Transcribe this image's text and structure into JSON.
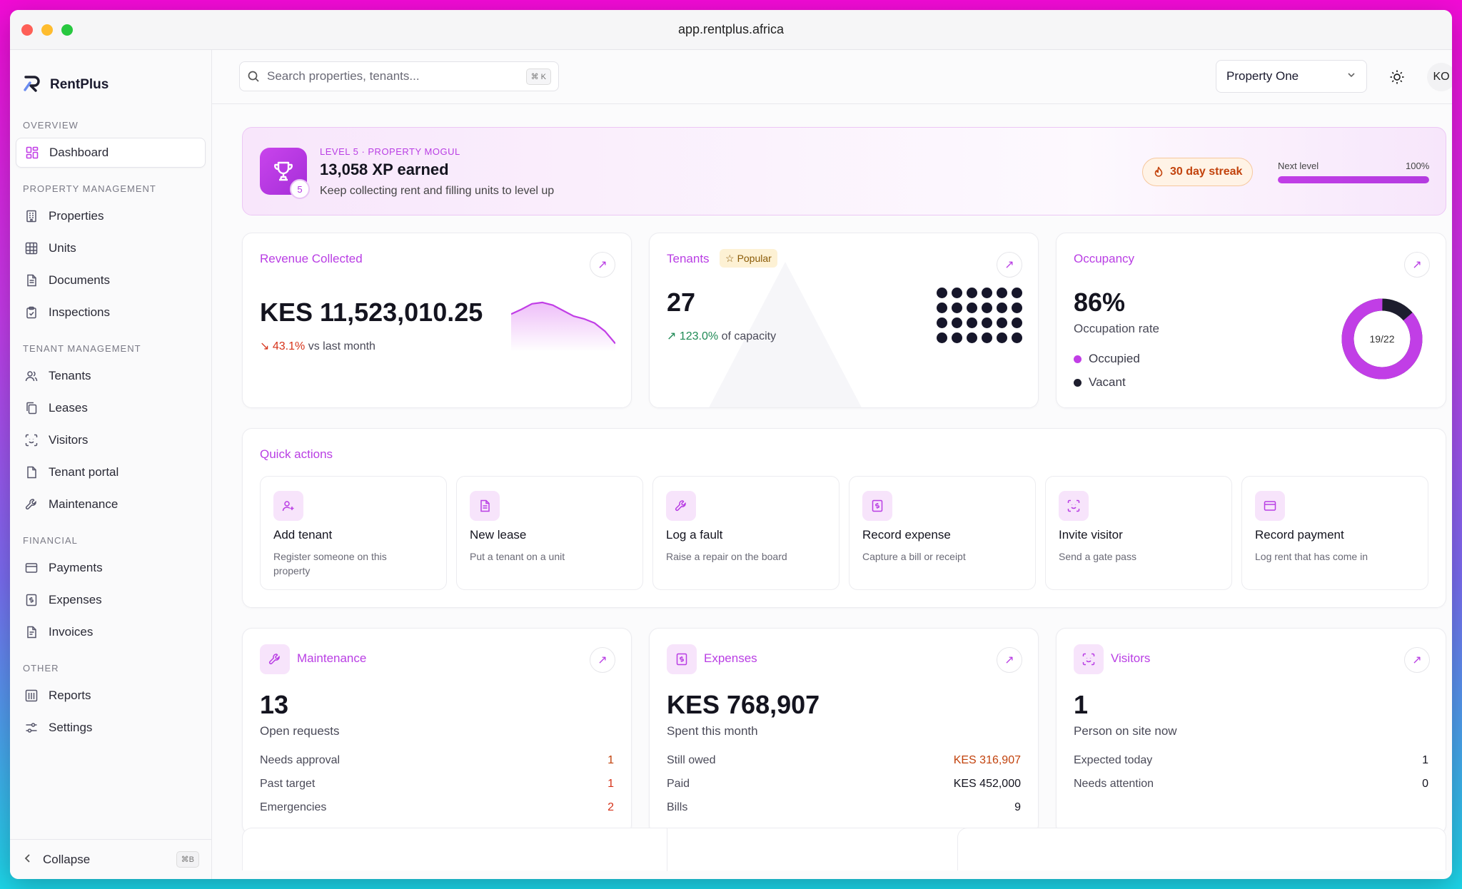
{
  "window": {
    "url": "app.rentplus.africa"
  },
  "brand": {
    "name": "RentPlus"
  },
  "sidebar": {
    "sections": [
      {
        "label": "OVERVIEW",
        "items": [
          {
            "label": "Dashboard",
            "icon": "grid-icon",
            "active": true
          }
        ]
      },
      {
        "label": "PROPERTY MANAGEMENT",
        "items": [
          {
            "label": "Properties",
            "icon": "building-icon"
          },
          {
            "label": "Units",
            "icon": "units-grid-icon"
          },
          {
            "label": "Documents",
            "icon": "document-icon"
          },
          {
            "label": "Inspections",
            "icon": "clipboard-check-icon"
          }
        ]
      },
      {
        "label": "TENANT MANAGEMENT",
        "items": [
          {
            "label": "Tenants",
            "icon": "users-icon"
          },
          {
            "label": "Leases",
            "icon": "copy-icon"
          },
          {
            "label": "Visitors",
            "icon": "scan-face-icon"
          },
          {
            "label": "Tenant portal",
            "icon": "file-icon"
          },
          {
            "label": "Maintenance",
            "icon": "wrench-icon"
          }
        ]
      },
      {
        "label": "FINANCIAL",
        "items": [
          {
            "label": "Payments",
            "icon": "wallet-icon"
          },
          {
            "label": "Expenses",
            "icon": "receipt-icon"
          },
          {
            "label": "Invoices",
            "icon": "invoice-icon"
          }
        ]
      },
      {
        "label": "OTHER",
        "items": [
          {
            "label": "Reports",
            "icon": "chart-icon"
          },
          {
            "label": "Settings",
            "icon": "sliders-icon"
          }
        ]
      }
    ],
    "collapse_label": "Collapse",
    "collapse_shortcut": "⌘B"
  },
  "topbar": {
    "search_placeholder": "Search properties, tenants...",
    "search_shortcut": "⌘ K",
    "property_select": "Property One",
    "avatar_initials": "KO"
  },
  "level": {
    "kicker": "LEVEL 5 · PROPERTY MOGUL",
    "title": "13,058 XP earned",
    "subtitle": "Keep collecting rent and filling units to level up",
    "badge": "5",
    "streak": "30 day streak",
    "next_label": "Next level",
    "next_pct": "100%",
    "progress": 1.0
  },
  "revenue": {
    "title": "Revenue Collected",
    "value": "KES 11,523,010.25",
    "delta_pct": "43.1%",
    "delta_text": "vs last month",
    "sparkline": [
      0.55,
      0.62,
      0.7,
      0.72,
      0.68,
      0.6,
      0.52,
      0.48,
      0.42,
      0.3,
      0.12
    ]
  },
  "tenants": {
    "title": "Tenants",
    "badge": "Popular",
    "value": "27",
    "delta_pct": "123.0%",
    "delta_text": "of capacity",
    "dot_count": 24
  },
  "occupancy": {
    "title": "Occupancy",
    "value": "86%",
    "subtitle": "Occupation rate",
    "ring_label": "19/22",
    "occupied": 19,
    "total": 22,
    "legend_occupied": "Occupied",
    "legend_vacant": "Vacant",
    "colors": {
      "occupied": "#c13ee6",
      "vacant": "#1e1e2e"
    }
  },
  "quick_actions": {
    "title": "Quick actions",
    "items": [
      {
        "label": "Add tenant",
        "desc": "Register someone on this property",
        "icon": "user-plus-icon"
      },
      {
        "label": "New lease",
        "desc": "Put a tenant on a unit",
        "icon": "document-icon"
      },
      {
        "label": "Log a fault",
        "desc": "Raise a repair on the board",
        "icon": "wrench-icon"
      },
      {
        "label": "Record expense",
        "desc": "Capture a bill or receipt",
        "icon": "receipt-icon"
      },
      {
        "label": "Invite visitor",
        "desc": "Send a gate pass",
        "icon": "scan-face-icon"
      },
      {
        "label": "Record payment",
        "desc": "Log rent that has come in",
        "icon": "wallet-icon"
      }
    ]
  },
  "maintenance": {
    "title": "Maintenance",
    "value": "13",
    "subtitle": "Open requests",
    "rows": [
      {
        "label": "Needs approval",
        "value": "1"
      },
      {
        "label": "Past target",
        "value": "1"
      },
      {
        "label": "Emergencies",
        "value": "2"
      }
    ]
  },
  "expenses": {
    "title": "Expenses",
    "value": "KES 768,907",
    "subtitle": "Spent this month",
    "rows": [
      {
        "label": "Still owed",
        "value": "KES 316,907"
      },
      {
        "label": "Paid",
        "value": "KES 452,000"
      },
      {
        "label": "Bills",
        "value": "9"
      }
    ]
  },
  "visitors": {
    "title": "Visitors",
    "value": "1",
    "subtitle": "Person on site now",
    "rows": [
      {
        "label": "Expected today",
        "value": "1"
      },
      {
        "label": "Needs attention",
        "value": "0"
      }
    ]
  },
  "colors": {
    "accent": "#c13ee6",
    "danger": "#d6331a",
    "positive": "#1f8a55",
    "streak": "#c2420c"
  }
}
